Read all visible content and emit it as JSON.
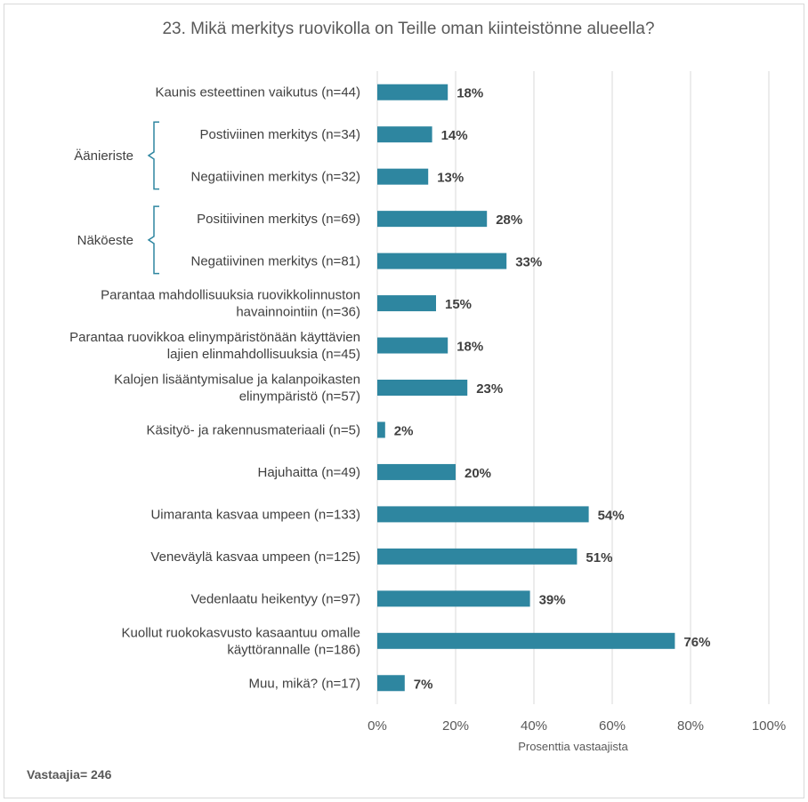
{
  "chart_data": {
    "type": "bar",
    "orientation": "horizontal",
    "title": "23. Mikä merkitys ruovikolla on Teille oman kiinteistönne alueella?",
    "xlabel": "Prosenttia vastaajista",
    "xlim": [
      0,
      100
    ],
    "x_ticks": [
      "0%",
      "20%",
      "40%",
      "60%",
      "80%",
      "100%"
    ],
    "grid": true,
    "bar_color": "#2E86A0",
    "categories": [
      [
        "Kaunis esteettinen vaikutus (n=44)"
      ],
      [
        "Postiviinen merkitys (n=34)"
      ],
      [
        "Negatiivinen merkitys (n=32)"
      ],
      [
        "Positiivinen merkitys (n=69)"
      ],
      [
        "Negatiivinen merkitys (n=81)"
      ],
      [
        "Parantaa mahdollisuuksia ruovikkolinnuston",
        "havainnointiin (n=36)"
      ],
      [
        "Parantaa ruovikkoa elinympäristönään käyttävien",
        "lajien elinmahdollisuuksia (n=45)"
      ],
      [
        "Kalojen lisääntymisalue ja kalanpoikasten",
        "elinympäristö (n=57)"
      ],
      [
        "Käsityö- ja rakennusmateriaali (n=5)"
      ],
      [
        "Hajuhaitta (n=49)"
      ],
      [
        "Uimaranta kasvaa umpeen (n=133)"
      ],
      [
        "Veneväylä kasvaa umpeen (n=125)"
      ],
      [
        "Vedenlaatu heikentyy (n=97)"
      ],
      [
        "Kuollut ruokokasvusto kasaantuu omalle",
        "käyttörannalle (n=186)"
      ],
      [
        "Muu, mikä? (n=17)"
      ]
    ],
    "values": [
      18,
      14,
      13,
      28,
      33,
      15,
      18,
      23,
      2,
      20,
      54,
      51,
      39,
      76,
      7
    ],
    "value_labels": [
      "18%",
      "14%",
      "13%",
      "28%",
      "33%",
      "15%",
      "18%",
      "23%",
      "2%",
      "20%",
      "54%",
      "51%",
      "39%",
      "76%",
      "7%"
    ],
    "groups": [
      {
        "label": "Äänieriste",
        "members": [
          1,
          2
        ]
      },
      {
        "label": "Näköeste",
        "members": [
          3,
          4
        ]
      }
    ],
    "footer": "Vastaajia= 246"
  },
  "colors": {
    "bar": "#2E86A0",
    "bracket": "#2E86A0",
    "grid": "#d9d9d9"
  }
}
